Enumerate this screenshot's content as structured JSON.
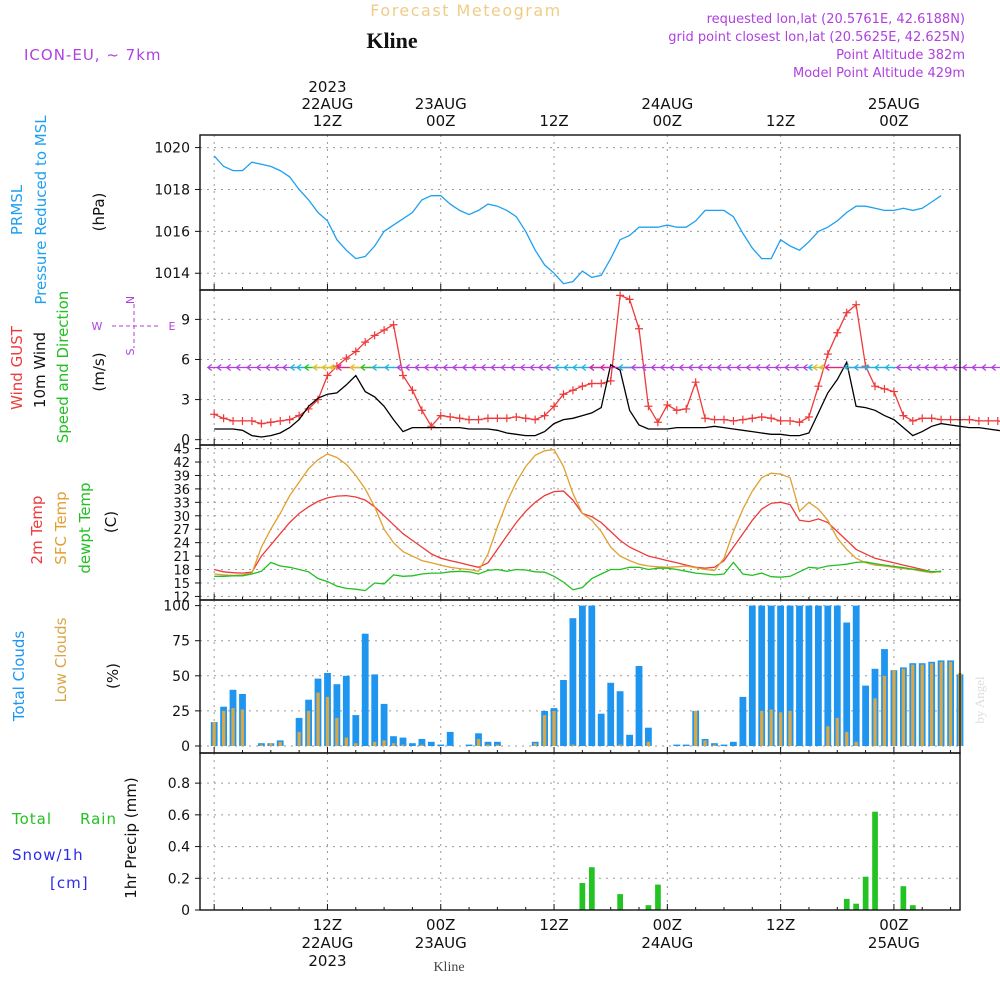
{
  "header": {
    "title": "Forecast Meteogram",
    "station": "Kline",
    "model": "ICON-EU, ~ 7km",
    "requested": "requested lon,lat (20.5761E, 42.6188N)",
    "grid_point": "grid point closest lon,lat (20.5625E, 42.625N)",
    "point_altitude": "Point Altitude 382m",
    "model_altitude": "Model Point Altitude 429m",
    "watermark": "by Angel",
    "footer_station": "Kline"
  },
  "colors": {
    "pressure": "#1ea0f0",
    "gust": "#ee3a3a",
    "wind": "#000000",
    "temp": "#ee3a3a",
    "sfc": "#e0a030",
    "dew": "#22c022",
    "clouds": "#1e96f0",
    "low_clouds": "#d8a848",
    "rain": "#22c322",
    "snow": "#2b2bee",
    "purple": "#b040e0",
    "grid": "#9a9a9a"
  },
  "time_axis": {
    "top_year": "2023",
    "top_labels": [
      {
        "h": 12,
        "line1": "22AUG",
        "line2": "12Z"
      },
      {
        "h": 24,
        "line1": "23AUG",
        "line2": "00Z"
      },
      {
        "h": 36,
        "line1": "",
        "line2": "12Z"
      },
      {
        "h": 48,
        "line1": "24AUG",
        "line2": "00Z"
      },
      {
        "h": 60,
        "line1": "",
        "line2": "12Z"
      },
      {
        "h": 72,
        "line1": "25AUG",
        "line2": "00Z"
      }
    ],
    "bottom_labels": [
      {
        "h": 12,
        "line1": "12Z",
        "line2": "22AUG",
        "line3": "2023"
      },
      {
        "h": 24,
        "line1": "00Z",
        "line2": "23AUG",
        "line3": ""
      },
      {
        "h": 36,
        "line1": "12Z",
        "line2": "",
        "line3": ""
      },
      {
        "h": 48,
        "line1": "00Z",
        "line2": "24AUG",
        "line3": ""
      },
      {
        "h": 60,
        "line1": "12Z",
        "line2": "",
        "line3": ""
      },
      {
        "h": 72,
        "line1": "00Z",
        "line2": "25AUG",
        "line3": ""
      }
    ]
  },
  "compass": {
    "n": "N",
    "s": "S",
    "w": "W",
    "e": "E"
  },
  "chart_data": [
    {
      "type": "line",
      "title": "Pressure Reduced to MSL",
      "side_labels": [
        "PRMSL",
        "Pressure Reduced to MSL"
      ],
      "ylabel": "(hPa)",
      "ylim": [
        1013.2,
        1020.6
      ],
      "yticks": [
        1014,
        1016,
        1018,
        1020
      ],
      "series": [
        {
          "name": "PRMSL",
          "values": [
            1019.6,
            1019.1,
            1018.9,
            1018.9,
            1019.3,
            1019.2,
            1019.1,
            1018.9,
            1018.6,
            1018.0,
            1017.5,
            1016.9,
            1016.5,
            1015.6,
            1015.1,
            1014.7,
            1014.8,
            1015.3,
            1016.0,
            1016.3,
            1016.6,
            1016.9,
            1017.5,
            1017.7,
            1017.7,
            1017.3,
            1017.0,
            1016.8,
            1017.0,
            1017.3,
            1017.2,
            1017.0,
            1016.7,
            1016.0,
            1015.1,
            1014.4,
            1014.0,
            1013.5,
            1013.6,
            1014.1,
            1013.8,
            1013.9,
            1014.7,
            1015.6,
            1015.8,
            1016.2,
            1016.2,
            1016.2,
            1016.3,
            1016.2,
            1016.2,
            1016.5,
            1017.0,
            1017.0,
            1017.0,
            1016.7,
            1015.9,
            1015.2,
            1014.7,
            1014.7,
            1015.6,
            1015.3,
            1015.1,
            1015.5,
            1016.0,
            1016.2,
            1016.5,
            1016.9,
            1017.2,
            1017.2,
            1017.1,
            1017.0,
            1017.0,
            1017.1,
            1017.0,
            1017.1,
            1017.4,
            1017.7
          ]
        }
      ]
    },
    {
      "type": "line",
      "title": "Wind",
      "side_labels": [
        "Wind GUST",
        "10m Wind",
        "Speed and Direction"
      ],
      "ylabel": "(m/s)",
      "ylim": [
        -0.4,
        11.2
      ],
      "yticks": [
        0,
        3,
        6,
        9
      ],
      "series": [
        {
          "name": "Wind GUST",
          "values": [
            1.9,
            1.6,
            1.4,
            1.4,
            1.4,
            1.2,
            1.3,
            1.4,
            1.5,
            1.8,
            2.3,
            3.0,
            4.8,
            5.5,
            6.1,
            6.6,
            7.3,
            7.8,
            8.2,
            8.6,
            4.8,
            3.7,
            2.2,
            1.0,
            1.8,
            1.7,
            1.6,
            1.5,
            1.5,
            1.6,
            1.6,
            1.6,
            1.7,
            1.6,
            1.5,
            1.8,
            2.5,
            3.4,
            3.7,
            4.0,
            4.2,
            4.2,
            4.4,
            10.8,
            10.5,
            8.3,
            2.5,
            1.3,
            2.6,
            2.2,
            2.3,
            4.3,
            1.6,
            1.5,
            1.5,
            1.4,
            1.5,
            1.6,
            1.7,
            1.6,
            1.4,
            1.4,
            1.3,
            1.7,
            4.0,
            6.4,
            8.0,
            9.5,
            10.1,
            5.5,
            4.0,
            3.8,
            3.6,
            1.8,
            1.4,
            1.6,
            1.6,
            1.5,
            1.5,
            1.5,
            1.5,
            1.4,
            1.4,
            1.4,
            1.3
          ]
        },
        {
          "name": "10m Wind",
          "values": [
            0.8,
            0.8,
            0.8,
            0.7,
            0.3,
            0.2,
            0.3,
            0.5,
            0.9,
            1.5,
            2.5,
            3.1,
            3.4,
            3.5,
            4.1,
            4.8,
            3.6,
            3.2,
            2.5,
            1.5,
            0.6,
            0.9,
            0.9,
            0.9,
            0.9,
            0.9,
            0.9,
            0.8,
            0.8,
            0.8,
            0.7,
            0.5,
            0.4,
            0.3,
            0.3,
            0.6,
            1.2,
            1.5,
            1.6,
            1.8,
            2.0,
            2.4,
            5.6,
            5.2,
            2.2,
            1.1,
            0.8,
            0.8,
            0.8,
            0.9,
            0.9,
            0.9,
            0.9,
            1.0,
            0.9,
            0.8,
            0.7,
            0.6,
            0.5,
            0.4,
            0.4,
            0.3,
            0.3,
            0.5,
            2.0,
            3.5,
            4.5,
            5.8,
            2.5,
            2.4,
            2.2,
            1.8,
            1.5,
            0.9,
            0.3,
            0.6,
            1.0,
            1.2,
            1.1,
            1.0,
            0.9,
            0.9,
            0.8,
            0.7,
            0.6
          ]
        }
      ]
    },
    {
      "type": "line",
      "title": "Temperature",
      "side_labels": [
        "2m Temp",
        "SFC Temp",
        "dewpt Temp"
      ],
      "ylabel": "(C)",
      "ylim": [
        11.2,
        45.8
      ],
      "yticks": [
        12,
        15,
        18,
        21,
        24,
        27,
        30,
        33,
        36,
        39,
        42,
        45
      ],
      "series": [
        {
          "name": "2m Temp",
          "values": [
            18.0,
            17.5,
            17.3,
            17.2,
            17.4,
            21.0,
            23.5,
            26.0,
            28.5,
            30.5,
            32.0,
            33.2,
            34.0,
            34.4,
            34.5,
            34.2,
            33.5,
            32.0,
            30.0,
            28.0,
            26.0,
            24.5,
            23.0,
            21.5,
            20.5,
            20.0,
            19.5,
            19.0,
            18.5,
            19.5,
            22.5,
            25.5,
            28.5,
            31.0,
            33.0,
            34.5,
            35.4,
            35.5,
            33.5,
            30.5,
            29.8,
            28.5,
            26.5,
            24.5,
            23.0,
            22.0,
            21.0,
            20.5,
            20.0,
            19.5,
            19.0,
            18.5,
            18.3,
            18.5,
            20.0,
            23.0,
            26.0,
            29.0,
            31.5,
            32.8,
            33.0,
            32.5,
            29.0,
            28.7,
            29.3,
            28.5,
            26.5,
            24.5,
            22.5,
            21.5,
            20.5,
            20.0,
            19.5,
            19.0,
            18.5,
            18.0,
            17.5,
            17.5
          ]
        },
        {
          "name": "SFC Temp",
          "values": [
            17.0,
            16.8,
            16.7,
            16.8,
            17.2,
            23.0,
            27.0,
            30.5,
            34.5,
            37.5,
            40.5,
            42.5,
            43.8,
            43.0,
            41.5,
            39.0,
            36.0,
            32.0,
            27.0,
            24.0,
            22.0,
            21.0,
            20.0,
            19.5,
            19.0,
            18.5,
            18.2,
            18.0,
            17.6,
            21.5,
            27.5,
            33.0,
            37.5,
            41.0,
            43.5,
            44.5,
            44.8,
            41.0,
            35.0,
            30.5,
            29.0,
            26.5,
            23.0,
            21.0,
            20.0,
            19.2,
            18.8,
            18.6,
            18.5,
            18.6,
            18.8,
            18.4,
            18.0,
            17.8,
            20.5,
            26.5,
            31.5,
            35.5,
            38.5,
            39.5,
            39.3,
            38.5,
            31.0,
            33.0,
            31.5,
            29.0,
            25.0,
            22.5,
            20.5,
            19.5,
            19.0,
            18.8,
            18.5,
            18.2,
            18.0,
            17.6,
            17.3,
            17.6
          ]
        },
        {
          "name": "dewpt Temp",
          "values": [
            16.5,
            16.5,
            16.6,
            16.6,
            17.0,
            17.6,
            19.6,
            18.8,
            18.5,
            18.0,
            17.5,
            16.0,
            15.3,
            14.3,
            13.8,
            13.6,
            13.3,
            15.0,
            14.8,
            16.8,
            16.5,
            16.6,
            17.0,
            17.2,
            17.2,
            17.5,
            17.6,
            17.5,
            17.0,
            17.8,
            18.0,
            17.6,
            18.0,
            17.9,
            17.5,
            17.4,
            16.5,
            15.2,
            13.5,
            14.0,
            16.0,
            17.0,
            18.0,
            18.0,
            18.5,
            18.5,
            18.0,
            18.3,
            18.3,
            18.0,
            17.6,
            17.2,
            17.0,
            16.8,
            17.0,
            19.6,
            17.0,
            16.7,
            17.2,
            16.4,
            16.3,
            16.5,
            17.5,
            18.5,
            18.3,
            18.8,
            19.0,
            19.2,
            19.6,
            19.7,
            19.3,
            19.0,
            18.7,
            18.4,
            18.1,
            17.8,
            17.5,
            17.6
          ]
        }
      ]
    },
    {
      "type": "bar",
      "title": "Clouds",
      "side_labels": [
        "Total Clouds",
        "Low Clouds"
      ],
      "ylabel": "(%)",
      "ylim": [
        -5,
        104
      ],
      "yticks": [
        0,
        25,
        50,
        75,
        100
      ],
      "series": [
        {
          "name": "Total Clouds",
          "values": [
            17,
            28,
            40,
            37,
            0,
            2,
            2,
            4,
            0,
            20,
            33,
            48,
            52,
            44,
            50,
            22,
            80,
            51,
            30,
            7,
            6,
            2,
            5,
            3,
            1,
            10,
            0,
            1,
            9,
            3,
            3,
            0,
            0,
            0,
            3,
            25,
            27,
            47,
            91,
            100,
            100,
            23,
            45,
            39,
            8,
            57,
            13,
            0,
            0,
            1,
            1,
            25,
            5,
            2,
            1,
            3,
            35,
            100,
            100,
            100,
            100,
            100,
            100,
            100,
            100,
            100,
            100,
            88,
            100,
            43,
            55,
            69,
            54,
            56,
            59,
            59,
            60,
            61,
            61,
            51
          ]
        },
        {
          "name": "Low Clouds",
          "values": [
            17,
            25,
            27,
            26,
            0,
            1,
            2,
            3,
            0,
            10,
            25,
            38,
            35,
            20,
            6,
            2,
            0,
            3,
            4,
            2,
            1,
            0,
            1,
            0,
            0,
            0,
            0,
            0,
            5,
            1,
            1,
            0,
            0,
            0,
            2,
            22,
            25,
            0,
            1,
            0,
            0,
            0,
            0,
            1,
            0,
            0,
            3,
            0,
            0,
            0,
            0,
            25,
            4,
            1,
            0,
            0,
            0,
            0,
            25,
            26,
            24,
            25,
            0,
            0,
            0,
            14,
            20,
            10,
            3,
            0,
            34,
            50,
            54,
            55,
            58,
            58,
            59,
            60,
            60,
            52
          ]
        }
      ]
    },
    {
      "type": "bar",
      "title": "1hr Precip",
      "side_labels": [
        "Total",
        "Rain",
        "Snow/1h",
        "[cm]"
      ],
      "ylabel": "1hr Precip (mm)",
      "ylim": [
        0,
        0.99
      ],
      "yticks": [
        0,
        0.2,
        0.4,
        0.6,
        0.8
      ],
      "series": [
        {
          "name": "Total Rain",
          "values": [
            0,
            0,
            0,
            0,
            0,
            0,
            0,
            0,
            0,
            0,
            0,
            0,
            0,
            0,
            0,
            0,
            0,
            0,
            0,
            0,
            0,
            0,
            0,
            0,
            0,
            0,
            0,
            0,
            0,
            0,
            0,
            0,
            0,
            0,
            0,
            0,
            0,
            0,
            0,
            0.17,
            0.27,
            0,
            0,
            0.1,
            0,
            0,
            0.03,
            0.16,
            0,
            0,
            0,
            0,
            0,
            0,
            0,
            0,
            0,
            0,
            0,
            0,
            0,
            0,
            0,
            0,
            0,
            0,
            0,
            0.07,
            0.04,
            0.21,
            0.62,
            0,
            0,
            0.15,
            0.03,
            0,
            0,
            0,
            0,
            0,
            0
          ]
        }
      ]
    }
  ]
}
